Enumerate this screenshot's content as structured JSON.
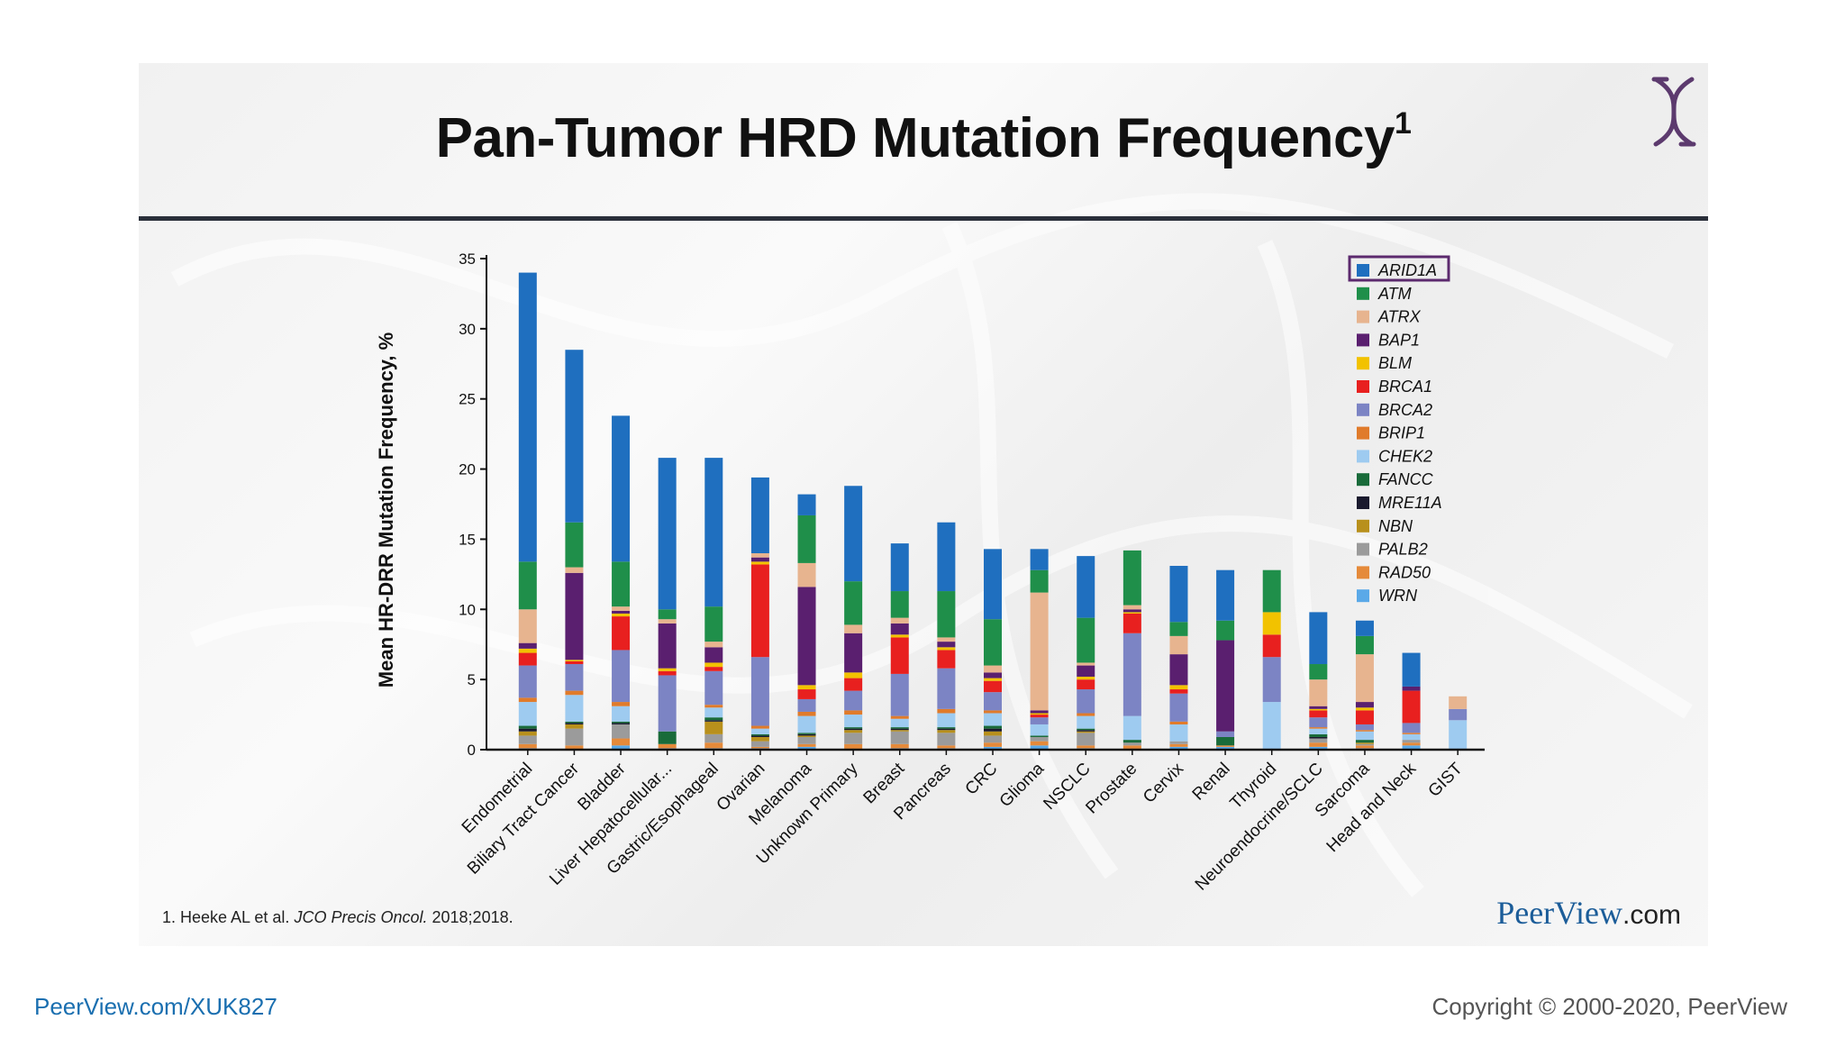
{
  "slide": {
    "title": "Pan-Tumor HRD Mutation Frequency",
    "title_sup": "1",
    "footnote_prefix": "1. Heeke AL et al.",
    "footnote_journal": "JCO Precis Oncol.",
    "footnote_suffix": "2018;2018.",
    "brand_main": "PeerView",
    "brand_suffix": ".com",
    "logo_icon": "dna-helix-icon"
  },
  "footer": {
    "url": "PeerView.com/XUK827",
    "copyright": "Copyright © 2000-2020, PeerView"
  },
  "chart_data": {
    "type": "bar",
    "stacked": true,
    "title": "",
    "xlabel": "",
    "ylabel": "Mean HR-DRR Mutation Frequency, %",
    "ylim": [
      0,
      35
    ],
    "yticks": [
      0,
      5,
      10,
      15,
      20,
      25,
      30,
      35
    ],
    "grid": false,
    "legend_position": "top-right",
    "highlighted_legend_entry": "ARID1A",
    "categories": [
      "Endometrial",
      "Biliary Tract Cancer",
      "Bladder",
      "Liver Hepatocellular...",
      "Gastric/Esophageal",
      "Ovarian",
      "Melanoma",
      "Unknown Primary",
      "Breast",
      "Pancreas",
      "CRC",
      "Glioma",
      "NSCLC",
      "Prostate",
      "Cervix",
      "Renal",
      "Thyroid",
      "Neuroendocrine/SCLC",
      "Sarcoma",
      "Head and Neck",
      "GIST"
    ],
    "series": [
      {
        "name": "ARID1A",
        "color": "#1f6fbf",
        "values": [
          20.6,
          12.3,
          10.4,
          10.8,
          10.6,
          5.4,
          1.5,
          6.8,
          3.4,
          4.9,
          5.0,
          1.5,
          4.4,
          0.0,
          4.0,
          3.6,
          0.0,
          3.7,
          1.1,
          2.4,
          0.0
        ]
      },
      {
        "name": "ATM",
        "color": "#1f8f4a",
        "values": [
          3.4,
          3.2,
          3.2,
          0.7,
          2.5,
          0.0,
          3.4,
          3.1,
          1.9,
          3.3,
          3.3,
          1.6,
          3.2,
          3.9,
          1.0,
          1.4,
          3.0,
          1.1,
          1.3,
          0.0,
          0.0
        ]
      },
      {
        "name": "ATRX",
        "color": "#e7b48f",
        "values": [
          2.4,
          0.4,
          0.3,
          0.3,
          0.4,
          0.3,
          1.7,
          0.6,
          0.4,
          0.3,
          0.5,
          8.4,
          0.2,
          0.3,
          1.3,
          0.0,
          0.0,
          1.9,
          3.4,
          0.0,
          0.9
        ]
      },
      {
        "name": "BAP1",
        "color": "#5a1f6f",
        "values": [
          0.4,
          6.2,
          0.2,
          3.2,
          1.1,
          0.3,
          7.0,
          2.8,
          0.8,
          0.4,
          0.4,
          0.2,
          0.8,
          0.2,
          2.2,
          6.5,
          0.0,
          0.2,
          0.4,
          0.3,
          0.0
        ]
      },
      {
        "name": "BLM",
        "color": "#f2c200",
        "values": [
          0.3,
          0.1,
          0.2,
          0.2,
          0.3,
          0.2,
          0.3,
          0.4,
          0.2,
          0.2,
          0.2,
          0.1,
          0.2,
          0.1,
          0.3,
          0.0,
          1.6,
          0.1,
          0.2,
          0.0,
          0.0
        ]
      },
      {
        "name": "BRCA1",
        "color": "#e8201f",
        "values": [
          0.9,
          0.2,
          2.4,
          0.3,
          0.3,
          6.6,
          0.7,
          0.9,
          2.6,
          1.3,
          0.8,
          0.2,
          0.7,
          1.4,
          0.3,
          0.0,
          1.6,
          0.5,
          1.0,
          2.3,
          0.0
        ]
      },
      {
        "name": "BRCA2",
        "color": "#7c84c4",
        "values": [
          2.3,
          1.9,
          3.7,
          4.0,
          2.4,
          4.9,
          0.9,
          1.4,
          3.0,
          2.9,
          1.3,
          0.5,
          1.7,
          5.9,
          2.0,
          0.4,
          3.2,
          0.7,
          0.4,
          0.7,
          0.8
        ]
      },
      {
        "name": "BRIP1",
        "color": "#e07b2b",
        "values": [
          0.3,
          0.3,
          0.3,
          0.0,
          0.2,
          0.2,
          0.3,
          0.3,
          0.2,
          0.3,
          0.2,
          0.0,
          0.2,
          0.0,
          0.2,
          0.0,
          0.0,
          0.1,
          0.1,
          0.1,
          0.0
        ]
      },
      {
        "name": "CHEK2",
        "color": "#9ecbf0",
        "values": [
          1.7,
          1.9,
          1.1,
          0.0,
          0.7,
          0.4,
          1.2,
          0.9,
          0.6,
          1.0,
          0.9,
          0.8,
          0.9,
          1.7,
          1.2,
          0.0,
          3.4,
          0.4,
          0.6,
          0.4,
          2.1
        ]
      },
      {
        "name": "FANCC",
        "color": "#196b3a",
        "values": [
          0.2,
          0.1,
          0.1,
          0.9,
          0.2,
          0.1,
          0.1,
          0.1,
          0.1,
          0.1,
          0.2,
          0.1,
          0.1,
          0.2,
          0.0,
          0.6,
          0.0,
          0.2,
          0.2,
          0.0,
          0.0
        ]
      },
      {
        "name": "MRE11A",
        "color": "#1a1a2e",
        "values": [
          0.2,
          0.1,
          0.1,
          0.0,
          0.1,
          0.1,
          0.1,
          0.1,
          0.1,
          0.1,
          0.2,
          0.0,
          0.1,
          0.0,
          0.0,
          0.0,
          0.0,
          0.1,
          0.0,
          0.0,
          0.0
        ]
      },
      {
        "name": "NBN",
        "color": "#b8901c",
        "values": [
          0.3,
          0.3,
          0.0,
          0.0,
          0.9,
          0.3,
          0.1,
          0.2,
          0.1,
          0.2,
          0.3,
          0.0,
          0.1,
          0.0,
          0.0,
          0.0,
          0.0,
          0.0,
          0.1,
          0.0,
          0.0
        ]
      },
      {
        "name": "PALB2",
        "color": "#9b9b9b",
        "values": [
          0.6,
          1.2,
          1.0,
          0.0,
          0.6,
          0.4,
          0.5,
          0.8,
          0.9,
          0.9,
          0.5,
          0.3,
          0.9,
          0.2,
          0.2,
          0.0,
          0.0,
          0.3,
          0.1,
          0.2,
          0.0
        ]
      },
      {
        "name": "RAD50",
        "color": "#e58a3a",
        "values": [
          0.3,
          0.3,
          0.5,
          0.3,
          0.4,
          0.1,
          0.2,
          0.4,
          0.3,
          0.2,
          0.3,
          0.3,
          0.2,
          0.3,
          0.2,
          0.1,
          0.0,
          0.3,
          0.2,
          0.2,
          0.0
        ]
      },
      {
        "name": "WRN",
        "color": "#5aa9e8",
        "values": [
          0.1,
          0.0,
          0.3,
          0.1,
          0.1,
          0.1,
          0.2,
          0.0,
          0.1,
          0.1,
          0.2,
          0.3,
          0.1,
          0.0,
          0.2,
          0.2,
          0.0,
          0.2,
          0.1,
          0.3,
          0.0
        ]
      }
    ]
  }
}
